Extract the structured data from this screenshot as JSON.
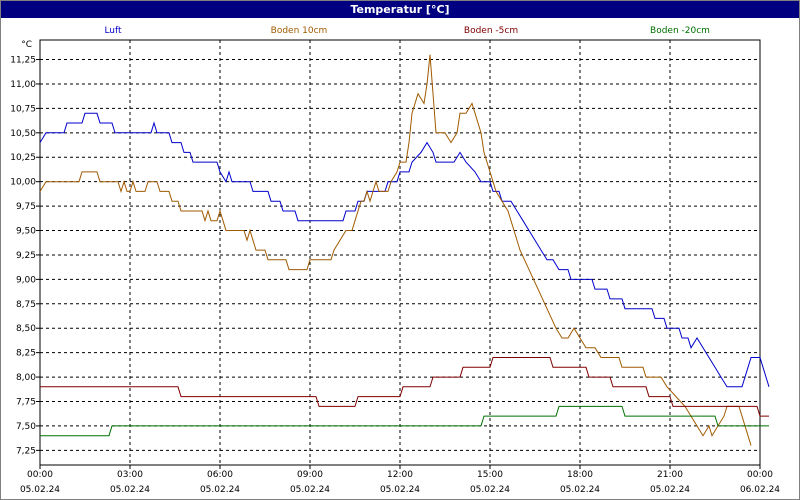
{
  "window": {
    "title": "Temperatur [°C]"
  },
  "chart_data": {
    "type": "line",
    "title": "Temperatur [°C]",
    "ylabel": "°C",
    "xlabel": "",
    "ylim": [
      7.1,
      11.45
    ],
    "xlim": [
      0,
      24
    ],
    "yticks": [
      7.25,
      7.5,
      7.75,
      8.0,
      8.25,
      8.5,
      8.75,
      9.0,
      9.25,
      9.5,
      9.75,
      10.0,
      10.25,
      10.5,
      10.75,
      11.0,
      11.25
    ],
    "ytick_labels": [
      "7,25",
      "7,50",
      "7,75",
      "8,00",
      "8,25",
      "8,50",
      "8,75",
      "9,00",
      "9,25",
      "9,50",
      "9,75",
      "10,00",
      "10,25",
      "10,50",
      "10,75",
      "11,00",
      "11,25"
    ],
    "xticks": [
      0,
      3,
      6,
      9,
      12,
      15,
      18,
      21,
      24
    ],
    "xtick_time_labels": [
      "00:00",
      "03:00",
      "06:00",
      "09:00",
      "12:00",
      "15:00",
      "18:00",
      "21:00",
      "00:00"
    ],
    "xtick_date_labels": [
      "05.02.24",
      "05.02.24",
      "05.02.24",
      "05.02.24",
      "05.02.24",
      "05.02.24",
      "05.02.24",
      "05.02.24",
      "06.02.24"
    ],
    "grid": true,
    "legend_position": "top",
    "series": [
      {
        "name": "Luft",
        "color": "#0000cc",
        "points": [
          [
            0,
            10.4
          ],
          [
            0.2,
            10.5
          ],
          [
            0.8,
            10.5
          ],
          [
            0.9,
            10.6
          ],
          [
            1.4,
            10.6
          ],
          [
            1.5,
            10.7
          ],
          [
            1.9,
            10.7
          ],
          [
            2.0,
            10.6
          ],
          [
            2.4,
            10.6
          ],
          [
            2.5,
            10.5
          ],
          [
            3.7,
            10.5
          ],
          [
            3.8,
            10.6
          ],
          [
            3.9,
            10.5
          ],
          [
            4.3,
            10.5
          ],
          [
            4.4,
            10.4
          ],
          [
            4.7,
            10.4
          ],
          [
            4.8,
            10.3
          ],
          [
            5.0,
            10.3
          ],
          [
            5.1,
            10.2
          ],
          [
            5.9,
            10.2
          ],
          [
            6.0,
            10.1
          ],
          [
            6.2,
            10.0
          ],
          [
            6.3,
            10.1
          ],
          [
            6.4,
            10.0
          ],
          [
            7.0,
            10.0
          ],
          [
            7.1,
            9.9
          ],
          [
            7.6,
            9.9
          ],
          [
            7.7,
            9.8
          ],
          [
            8.0,
            9.8
          ],
          [
            8.1,
            9.7
          ],
          [
            8.5,
            9.7
          ],
          [
            8.6,
            9.6
          ],
          [
            10.1,
            9.6
          ],
          [
            10.2,
            9.7
          ],
          [
            10.5,
            9.7
          ],
          [
            10.6,
            9.8
          ],
          [
            10.8,
            9.8
          ],
          [
            10.9,
            9.9
          ],
          [
            11.5,
            9.9
          ],
          [
            11.6,
            10.0
          ],
          [
            11.9,
            10.0
          ],
          [
            12.0,
            10.1
          ],
          [
            12.3,
            10.1
          ],
          [
            12.4,
            10.2
          ],
          [
            12.7,
            10.3
          ],
          [
            12.9,
            10.4
          ],
          [
            13.1,
            10.3
          ],
          [
            13.2,
            10.2
          ],
          [
            13.8,
            10.2
          ],
          [
            14.0,
            10.3
          ],
          [
            14.2,
            10.2
          ],
          [
            14.5,
            10.1
          ],
          [
            14.7,
            10.0
          ],
          [
            15.0,
            10.0
          ],
          [
            15.1,
            9.9
          ],
          [
            15.3,
            9.9
          ],
          [
            15.4,
            9.8
          ],
          [
            15.7,
            9.8
          ],
          [
            15.9,
            9.7
          ],
          [
            16.1,
            9.6
          ],
          [
            16.3,
            9.5
          ],
          [
            16.5,
            9.4
          ],
          [
            16.7,
            9.3
          ],
          [
            16.9,
            9.2
          ],
          [
            17.1,
            9.2
          ],
          [
            17.3,
            9.1
          ],
          [
            17.6,
            9.1
          ],
          [
            17.7,
            9.0
          ],
          [
            18.4,
            9.0
          ],
          [
            18.5,
            8.9
          ],
          [
            18.9,
            8.9
          ],
          [
            19.0,
            8.8
          ],
          [
            19.4,
            8.8
          ],
          [
            19.5,
            8.7
          ],
          [
            20.4,
            8.7
          ],
          [
            20.5,
            8.6
          ],
          [
            20.8,
            8.6
          ],
          [
            20.9,
            8.5
          ],
          [
            21.3,
            8.5
          ],
          [
            21.4,
            8.4
          ],
          [
            21.6,
            8.4
          ],
          [
            21.7,
            8.3
          ],
          [
            21.9,
            8.4
          ],
          [
            22.1,
            8.3
          ],
          [
            22.3,
            8.2
          ],
          [
            22.5,
            8.1
          ],
          [
            22.7,
            8.0
          ],
          [
            22.9,
            7.9
          ],
          [
            23.4,
            7.9
          ],
          [
            23.5,
            8.0
          ],
          [
            23.6,
            8.1
          ],
          [
            23.7,
            8.2
          ],
          [
            24.0,
            8.2
          ],
          [
            24.1,
            8.1
          ],
          [
            24.2,
            8.0
          ],
          [
            24.3,
            7.9
          ]
        ]
      },
      {
        "name": "Boden 10cm",
        "color": "#a05a00",
        "points": [
          [
            0,
            9.9
          ],
          [
            0.2,
            10.0
          ],
          [
            1.3,
            10.0
          ],
          [
            1.4,
            10.1
          ],
          [
            1.9,
            10.1
          ],
          [
            2.0,
            10.0
          ],
          [
            2.6,
            10.0
          ],
          [
            2.7,
            9.9
          ],
          [
            2.8,
            10.0
          ],
          [
            2.9,
            9.9
          ],
          [
            3.0,
            9.9
          ],
          [
            3.1,
            10.0
          ],
          [
            3.2,
            9.9
          ],
          [
            3.5,
            9.9
          ],
          [
            3.6,
            10.0
          ],
          [
            3.9,
            10.0
          ],
          [
            4.0,
            9.9
          ],
          [
            4.3,
            9.9
          ],
          [
            4.4,
            9.8
          ],
          [
            4.6,
            9.8
          ],
          [
            4.7,
            9.7
          ],
          [
            5.4,
            9.7
          ],
          [
            5.5,
            9.6
          ],
          [
            5.6,
            9.7
          ],
          [
            5.7,
            9.6
          ],
          [
            5.9,
            9.6
          ],
          [
            6.0,
            9.7
          ],
          [
            6.1,
            9.6
          ],
          [
            6.2,
            9.5
          ],
          [
            6.8,
            9.5
          ],
          [
            6.9,
            9.4
          ],
          [
            7.0,
            9.5
          ],
          [
            7.1,
            9.4
          ],
          [
            7.2,
            9.3
          ],
          [
            7.5,
            9.3
          ],
          [
            7.6,
            9.2
          ],
          [
            8.2,
            9.2
          ],
          [
            8.3,
            9.1
          ],
          [
            8.9,
            9.1
          ],
          [
            9.0,
            9.2
          ],
          [
            9.7,
            9.2
          ],
          [
            9.8,
            9.3
          ],
          [
            10.0,
            9.4
          ],
          [
            10.2,
            9.5
          ],
          [
            10.4,
            9.5
          ],
          [
            10.5,
            9.6
          ],
          [
            10.6,
            9.7
          ],
          [
            10.7,
            9.8
          ],
          [
            10.8,
            9.8
          ],
          [
            10.9,
            9.9
          ],
          [
            11.0,
            9.8
          ],
          [
            11.1,
            9.9
          ],
          [
            11.2,
            10.0
          ],
          [
            11.3,
            9.9
          ],
          [
            11.6,
            9.9
          ],
          [
            11.7,
            10.0
          ],
          [
            11.9,
            10.1
          ],
          [
            12.0,
            10.2
          ],
          [
            12.2,
            10.2
          ],
          [
            12.3,
            10.4
          ],
          [
            12.4,
            10.7
          ],
          [
            12.6,
            10.9
          ],
          [
            12.8,
            10.8
          ],
          [
            12.9,
            11.0
          ],
          [
            13.0,
            11.3
          ],
          [
            13.1,
            10.9
          ],
          [
            13.2,
            10.5
          ],
          [
            13.5,
            10.5
          ],
          [
            13.7,
            10.4
          ],
          [
            13.9,
            10.5
          ],
          [
            14.0,
            10.7
          ],
          [
            14.2,
            10.7
          ],
          [
            14.4,
            10.8
          ],
          [
            14.5,
            10.7
          ],
          [
            14.6,
            10.6
          ],
          [
            14.7,
            10.5
          ],
          [
            14.8,
            10.3
          ],
          [
            15.0,
            10.1
          ],
          [
            15.2,
            9.9
          ],
          [
            15.4,
            9.8
          ],
          [
            15.6,
            9.7
          ],
          [
            15.8,
            9.5
          ],
          [
            16.0,
            9.3
          ],
          [
            16.3,
            9.1
          ],
          [
            16.6,
            8.9
          ],
          [
            16.9,
            8.7
          ],
          [
            17.2,
            8.5
          ],
          [
            17.4,
            8.4
          ],
          [
            17.6,
            8.4
          ],
          [
            17.8,
            8.5
          ],
          [
            18.0,
            8.4
          ],
          [
            18.2,
            8.3
          ],
          [
            18.5,
            8.3
          ],
          [
            18.7,
            8.2
          ],
          [
            19.3,
            8.2
          ],
          [
            19.4,
            8.1
          ],
          [
            20.1,
            8.1
          ],
          [
            20.2,
            8.0
          ],
          [
            20.7,
            8.0
          ],
          [
            20.9,
            7.9
          ],
          [
            21.2,
            7.8
          ],
          [
            21.5,
            7.7
          ],
          [
            21.7,
            7.6
          ],
          [
            21.9,
            7.5
          ],
          [
            22.1,
            7.4
          ],
          [
            22.3,
            7.5
          ],
          [
            22.4,
            7.4
          ],
          [
            22.6,
            7.5
          ],
          [
            22.8,
            7.6
          ],
          [
            22.9,
            7.7
          ],
          [
            23.3,
            7.7
          ],
          [
            23.4,
            7.6
          ],
          [
            23.5,
            7.5
          ],
          [
            23.6,
            7.4
          ],
          [
            23.7,
            7.3
          ]
        ]
      },
      {
        "name": "Boden -5cm",
        "color": "#800000",
        "points": [
          [
            0,
            7.9
          ],
          [
            4.6,
            7.9
          ],
          [
            4.7,
            7.8
          ],
          [
            9.2,
            7.8
          ],
          [
            9.3,
            7.7
          ],
          [
            10.5,
            7.7
          ],
          [
            10.6,
            7.8
          ],
          [
            12.0,
            7.8
          ],
          [
            12.1,
            7.9
          ],
          [
            13.0,
            7.9
          ],
          [
            13.1,
            8.0
          ],
          [
            14.0,
            8.0
          ],
          [
            14.1,
            8.1
          ],
          [
            15.0,
            8.1
          ],
          [
            15.1,
            8.2
          ],
          [
            17.0,
            8.2
          ],
          [
            17.1,
            8.1
          ],
          [
            18.2,
            8.1
          ],
          [
            18.3,
            8.0
          ],
          [
            19.0,
            8.0
          ],
          [
            19.1,
            7.9
          ],
          [
            20.2,
            7.9
          ],
          [
            20.3,
            7.8
          ],
          [
            21.0,
            7.8
          ],
          [
            21.1,
            7.7
          ],
          [
            23.9,
            7.7
          ],
          [
            24.0,
            7.6
          ],
          [
            24.3,
            7.6
          ]
        ]
      },
      {
        "name": "Boden -20cm",
        "color": "#007000",
        "points": [
          [
            0,
            7.4
          ],
          [
            2.3,
            7.4
          ],
          [
            2.4,
            7.5
          ],
          [
            14.7,
            7.5
          ],
          [
            14.8,
            7.6
          ],
          [
            17.2,
            7.6
          ],
          [
            17.3,
            7.7
          ],
          [
            19.4,
            7.7
          ],
          [
            19.5,
            7.6
          ],
          [
            22.5,
            7.6
          ],
          [
            22.6,
            7.5
          ],
          [
            24.3,
            7.5
          ]
        ]
      }
    ]
  }
}
